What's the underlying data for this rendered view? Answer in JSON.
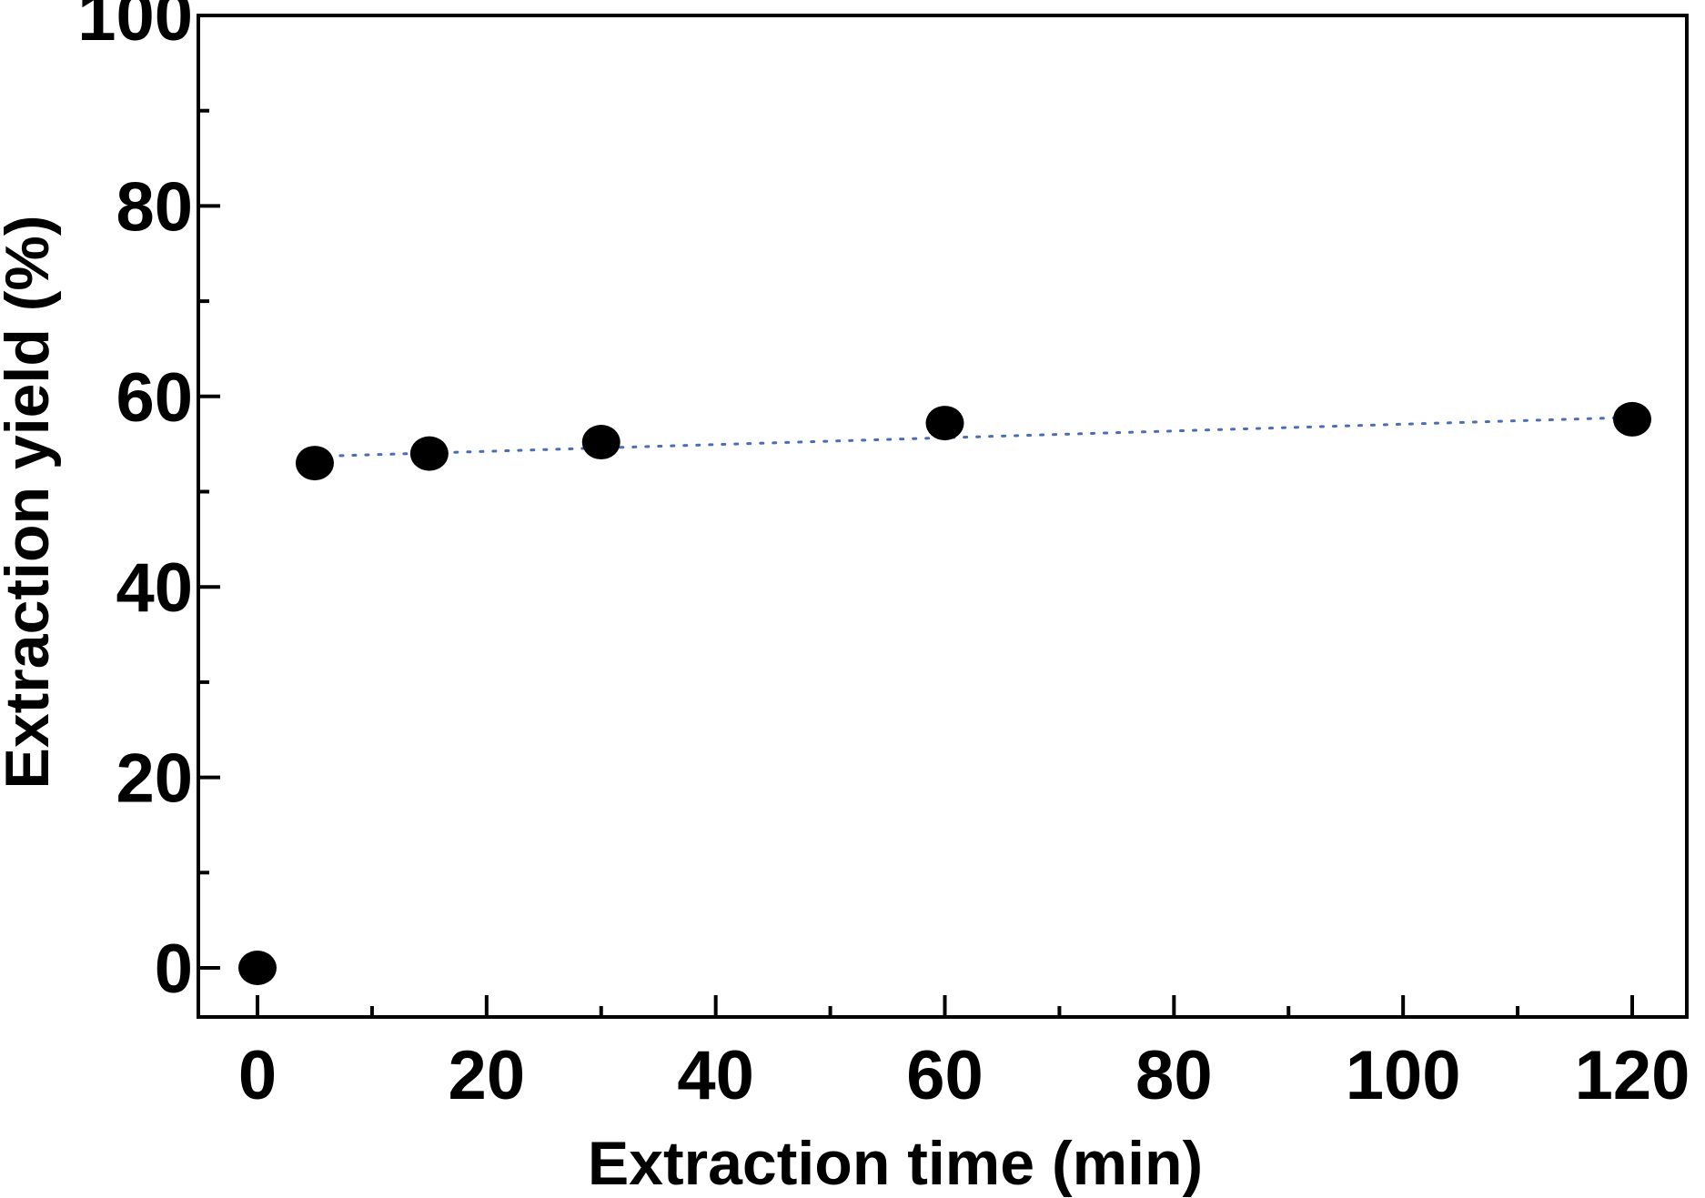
{
  "chart_data": {
    "type": "scatter",
    "title": "",
    "xlabel": "Extraction time (min)",
    "ylabel": "Extraction yield (%)",
    "xlim": [
      -5,
      125
    ],
    "ylim": [
      -5,
      100
    ],
    "x_ticks": [
      0,
      20,
      40,
      60,
      80,
      100,
      120
    ],
    "y_ticks": [
      0,
      20,
      40,
      60,
      80,
      100
    ],
    "grid": false,
    "legend": "none",
    "series": [
      {
        "x": [
          0,
          5,
          15,
          30,
          60,
          120
        ],
        "y": [
          0,
          53,
          54,
          55.2,
          57.2,
          57.6
        ],
        "marker": "filled-circle",
        "color": "#000000"
      }
    ],
    "trend_line": {
      "style": "dotted",
      "color": "#4a6db5",
      "x": [
        5,
        120
      ],
      "y": [
        53.7,
        57.8
      ]
    },
    "colors": {
      "axis": "#000000",
      "marker": "#000000",
      "trend": "#4a6db5"
    }
  }
}
